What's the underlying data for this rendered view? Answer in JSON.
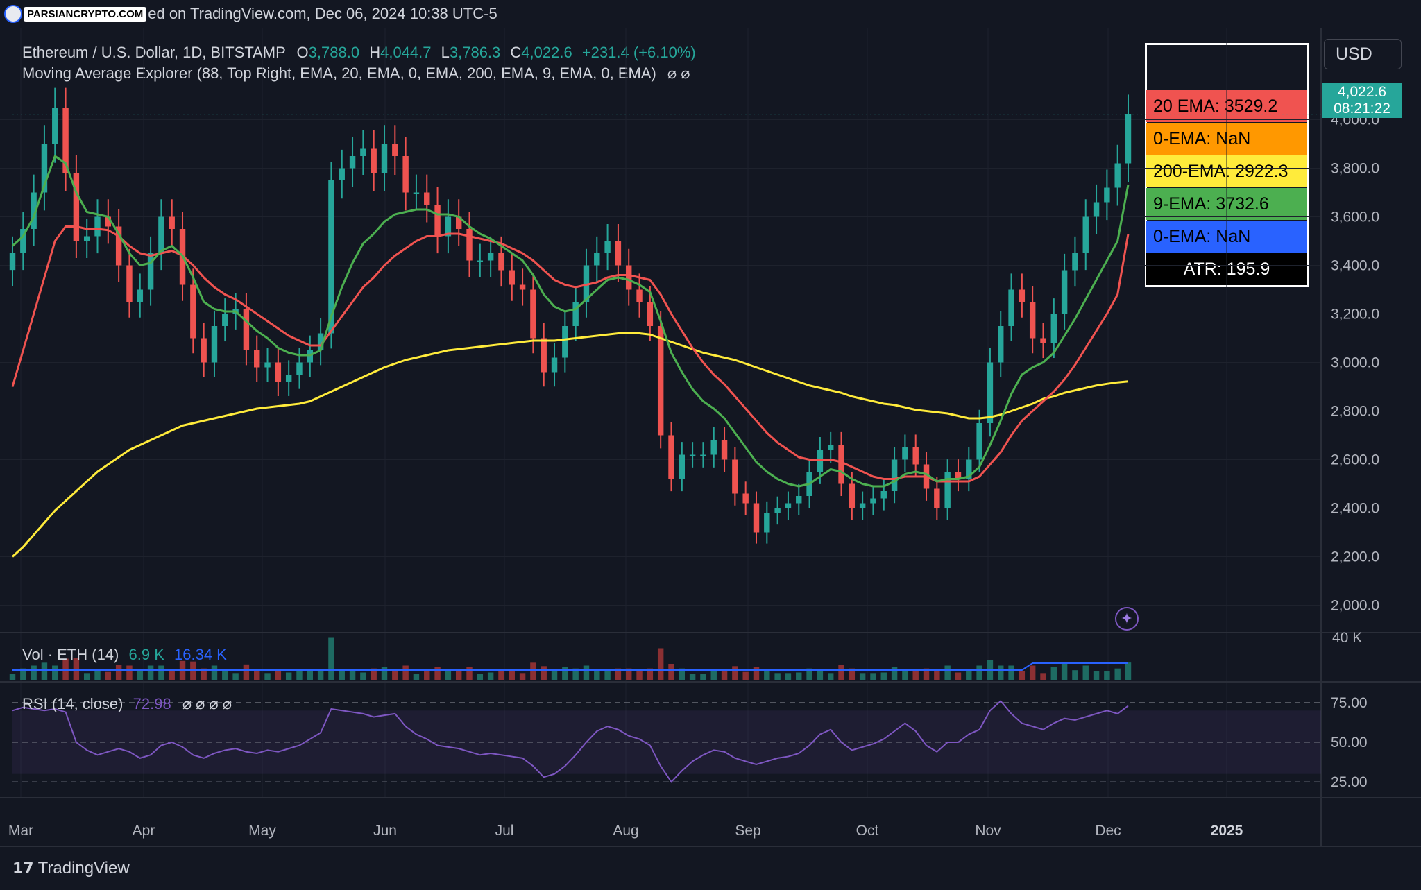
{
  "watermark": {
    "brand": "PARSIANCRYPTO.COM",
    "caption_prefix": "ed on TradingView.com, Dec 06, 2024 10:38 UTC-5"
  },
  "header": {
    "symbol": "Ethereum / U.S. Dollar, 1D, BITSTAMP",
    "o_label": "O",
    "o_value": "3,788.0",
    "h_label": "H",
    "h_value": "4,044.7",
    "l_label": "L",
    "l_value": "3,786.3",
    "c_label": "C",
    "c_value": "4,022.6",
    "change": "+231.4 (+6.10%)",
    "indicator": "Moving Average Explorer (88, Top Right, EMA, 20, EMA, 0, EMA, 200, EMA, 9, EMA, 0, EMA)",
    "indicator_icons": "⌀ ⌀"
  },
  "ma_legend": [
    {
      "label": "20 EMA: 3529.2",
      "bg": "#f05350",
      "fg": "#000000"
    },
    {
      "label": "0-EMA: NaN",
      "bg": "#ff9800",
      "fg": "#000000"
    },
    {
      "label": "200-EMA: 2922.3",
      "bg": "#ffeb3b",
      "fg": "#000000"
    },
    {
      "label": "9-EMA: 3732.6",
      "bg": "#4caf50",
      "fg": "#000000"
    },
    {
      "label": "0-EMA: NaN",
      "bg": "#2962ff",
      "fg": "#000000"
    },
    {
      "label": "ATR: 195.9",
      "bg": "#000000",
      "fg": "#ffffff"
    }
  ],
  "currency": "USD",
  "last_price": {
    "value": "4,022.6",
    "countdown": "08:21:22",
    "color": "#26a69a"
  },
  "volume_pane": {
    "label": "Vol · ETH (14)",
    "v1": "6.9 K",
    "v2": "16.34 K",
    "axis": "40 K"
  },
  "rsi_pane": {
    "label": "RSI (14, close)",
    "value": "72.98",
    "icons": "⌀ ⌀ ⌀ ⌀",
    "color": "#7e57c2"
  },
  "footer": {
    "brand": "TradingView"
  },
  "chart_data": {
    "type": "candlestick",
    "y_ticks": [
      "4,000.0",
      "3,800.0",
      "3,600.0",
      "3,400.0",
      "3,200.0",
      "3,000.0",
      "2,800.0",
      "2,600.0",
      "2,400.0",
      "2,200.0",
      "2,000.0"
    ],
    "y_tick_values": [
      4000,
      3800,
      3600,
      3400,
      3200,
      3000,
      2800,
      2600,
      2400,
      2200,
      2000
    ],
    "ylim": [
      1950,
      4150
    ],
    "x_labels": [
      "Mar",
      "Apr",
      "May",
      "Jun",
      "Jul",
      "Aug",
      "Sep",
      "Oct",
      "Nov",
      "Dec",
      "2025"
    ],
    "rsi_ticks": [
      "75.00",
      "50.00",
      "25.00"
    ],
    "rsi_tick_values": [
      75,
      50,
      25
    ],
    "rsi_ylim": [
      15,
      85
    ],
    "price_series": [
      3450,
      3550,
      3700,
      3900,
      4050,
      3780,
      3500,
      3520,
      3600,
      3560,
      3400,
      3250,
      3300,
      3450,
      3600,
      3550,
      3320,
      3100,
      3000,
      3150,
      3200,
      3220,
      3050,
      2980,
      3000,
      2920,
      2950,
      3000,
      3050,
      3120,
      3750,
      3800,
      3850,
      3880,
      3780,
      3900,
      3850,
      3700,
      3700,
      3650,
      3520,
      3600,
      3550,
      3420,
      3420,
      3450,
      3380,
      3320,
      3300,
      3100,
      2960,
      3020,
      3150,
      3250,
      3400,
      3450,
      3500,
      3400,
      3300,
      3250,
      3150,
      2700,
      2520,
      2620,
      2620,
      2620,
      2680,
      2600,
      2460,
      2420,
      2300,
      2380,
      2400,
      2420,
      2450,
      2550,
      2640,
      2660,
      2500,
      2400,
      2420,
      2440,
      2470,
      2600,
      2650,
      2580,
      2480,
      2400,
      2550,
      2520,
      2600,
      2750,
      3000,
      3150,
      3300,
      3250,
      3100,
      3080,
      3200,
      3380,
      3450,
      3600,
      3660,
      3720,
      3820,
      4022.6
    ],
    "ema9_series": [
      3480,
      3520,
      3600,
      3730,
      3850,
      3820,
      3700,
      3620,
      3610,
      3600,
      3530,
      3450,
      3400,
      3410,
      3460,
      3480,
      3440,
      3350,
      3250,
      3220,
      3210,
      3210,
      3170,
      3130,
      3100,
      3060,
      3040,
      3030,
      3030,
      3050,
      3190,
      3310,
      3410,
      3490,
      3530,
      3580,
      3610,
      3620,
      3630,
      3630,
      3610,
      3610,
      3600,
      3560,
      3530,
      3510,
      3480,
      3450,
      3420,
      3360,
      3280,
      3230,
      3210,
      3220,
      3260,
      3300,
      3340,
      3350,
      3340,
      3320,
      3290,
      3170,
      3040,
      2960,
      2890,
      2840,
      2810,
      2770,
      2710,
      2650,
      2590,
      2550,
      2520,
      2500,
      2490,
      2500,
      2530,
      2560,
      2550,
      2520,
      2500,
      2490,
      2490,
      2510,
      2540,
      2550,
      2540,
      2510,
      2520,
      2520,
      2530,
      2570,
      2660,
      2760,
      2870,
      2950,
      2980,
      3000,
      3040,
      3110,
      3180,
      3260,
      3340,
      3420,
      3500,
      3732.6
    ],
    "ema20_series": [
      2900,
      3050,
      3200,
      3350,
      3500,
      3560,
      3560,
      3550,
      3550,
      3545,
      3520,
      3480,
      3450,
      3440,
      3450,
      3460,
      3440,
      3400,
      3350,
      3310,
      3280,
      3260,
      3230,
      3200,
      3170,
      3140,
      3110,
      3090,
      3070,
      3070,
      3130,
      3190,
      3250,
      3310,
      3350,
      3400,
      3440,
      3470,
      3500,
      3520,
      3520,
      3530,
      3530,
      3520,
      3510,
      3500,
      3490,
      3470,
      3450,
      3420,
      3380,
      3340,
      3320,
      3310,
      3320,
      3330,
      3350,
      3360,
      3360,
      3350,
      3340,
      3280,
      3200,
      3130,
      3060,
      3000,
      2950,
      2910,
      2860,
      2810,
      2760,
      2710,
      2670,
      2640,
      2610,
      2600,
      2600,
      2600,
      2590,
      2570,
      2550,
      2530,
      2520,
      2520,
      2530,
      2530,
      2530,
      2510,
      2510,
      2510,
      2510,
      2530,
      2580,
      2630,
      2700,
      2760,
      2800,
      2840,
      2880,
      2930,
      2990,
      3060,
      3130,
      3200,
      3280,
      3529.2
    ],
    "ema200_series": [
      2200,
      2240,
      2290,
      2340,
      2390,
      2430,
      2470,
      2510,
      2550,
      2580,
      2610,
      2640,
      2660,
      2680,
      2700,
      2720,
      2740,
      2750,
      2760,
      2770,
      2780,
      2790,
      2800,
      2810,
      2815,
      2820,
      2825,
      2830,
      2840,
      2860,
      2880,
      2900,
      2920,
      2940,
      2960,
      2980,
      2995,
      3010,
      3020,
      3030,
      3040,
      3050,
      3055,
      3060,
      3065,
      3070,
      3075,
      3080,
      3085,
      3090,
      3090,
      3090,
      3095,
      3100,
      3105,
      3110,
      3115,
      3120,
      3120,
      3120,
      3115,
      3100,
      3085,
      3070,
      3055,
      3040,
      3030,
      3020,
      3010,
      2995,
      2980,
      2965,
      2950,
      2935,
      2920,
      2905,
      2895,
      2885,
      2875,
      2860,
      2850,
      2840,
      2830,
      2825,
      2815,
      2805,
      2800,
      2795,
      2790,
      2780,
      2770,
      2770,
      2775,
      2785,
      2800,
      2815,
      2830,
      2850,
      2860,
      2875,
      2885,
      2895,
      2905,
      2912,
      2918,
      2922.3
    ],
    "rsi_series": [
      70,
      72,
      71,
      70,
      71,
      69,
      50,
      45,
      42,
      44,
      46,
      44,
      40,
      42,
      48,
      50,
      47,
      42,
      40,
      43,
      45,
      46,
      44,
      43,
      45,
      44,
      46,
      48,
      52,
      56,
      71,
      70,
      69,
      68,
      66,
      67,
      68,
      60,
      55,
      52,
      48,
      47,
      46,
      44,
      42,
      43,
      42,
      41,
      40,
      35,
      28,
      30,
      35,
      42,
      50,
      57,
      60,
      58,
      54,
      52,
      48,
      35,
      25,
      32,
      38,
      42,
      45,
      44,
      40,
      38,
      36,
      38,
      40,
      41,
      43,
      48,
      55,
      58,
      50,
      45,
      47,
      49,
      52,
      57,
      62,
      57,
      48,
      44,
      50,
      50,
      55,
      58,
      70,
      76,
      68,
      62,
      60,
      58,
      62,
      65,
      64,
      66,
      68,
      70,
      68,
      72.98
    ]
  }
}
